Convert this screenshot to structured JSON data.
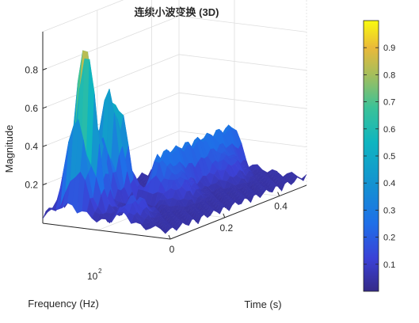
{
  "chart_data": {
    "type": "surface3d",
    "title": "连续小波变换 (3D)",
    "xlabel": "Time (s)",
    "ylabel": "Frequency (Hz)",
    "zlabel": "Magnitude",
    "x_ticks": [
      "0",
      "0.2",
      "0.4"
    ],
    "x_tick_values": [
      0,
      0.2,
      0.4
    ],
    "xlim": [
      0,
      0.5
    ],
    "y_tick_base": "10",
    "y_tick_exp": "2",
    "y_scale": "log",
    "ylim": [
      5,
      1000
    ],
    "z_ticks": [
      "0.2",
      "0.4",
      "0.6",
      "0.8"
    ],
    "z_tick_values": [
      0.2,
      0.4,
      0.6,
      0.8
    ],
    "zlim": [
      0,
      1
    ],
    "colormap": "parula",
    "colorbar": {
      "ticks": [
        "0.1",
        "0.2",
        "0.3",
        "0.4",
        "0.5",
        "0.6",
        "0.7",
        "0.8",
        "0.9"
      ],
      "tick_values": [
        0.1,
        0.2,
        0.3,
        0.4,
        0.5,
        0.6,
        0.7,
        0.8,
        0.9
      ],
      "range": [
        0,
        1
      ],
      "placement": "right"
    },
    "grid": true,
    "peaks": [
      {
        "time": 0.05,
        "frequency": 300,
        "magnitude": 1.0
      },
      {
        "time": 0.15,
        "frequency": 300,
        "magnitude": 0.72
      },
      {
        "time": 0.35,
        "frequency": 150,
        "magnitude": 0.24
      }
    ],
    "colors": {
      "low": "#352a87",
      "mid": "#1ab4c4",
      "high": "#f9fb0e",
      "axes": "#262626",
      "grid": "#dedede"
    }
  }
}
